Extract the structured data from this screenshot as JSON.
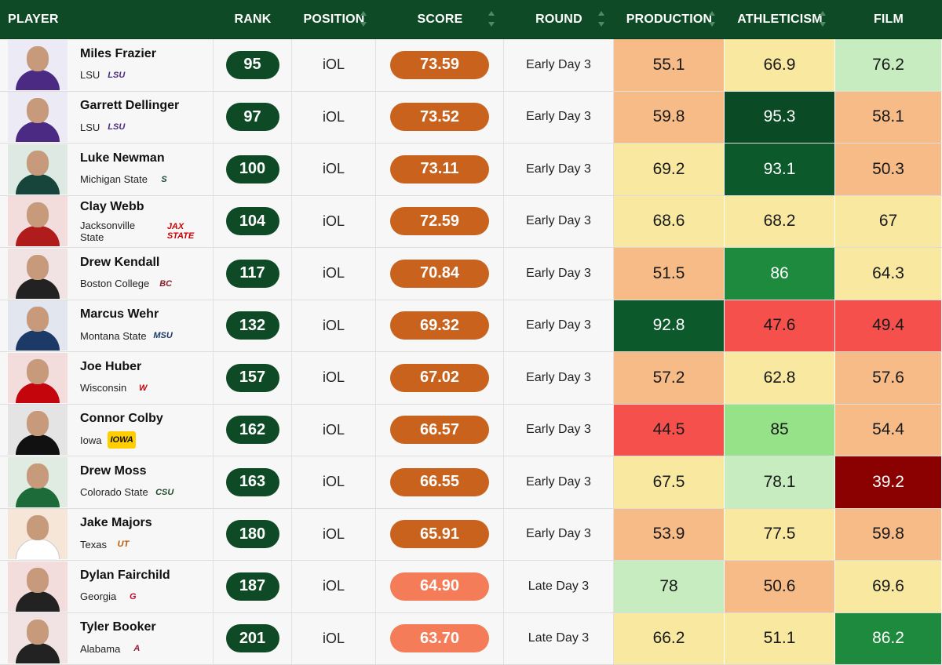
{
  "headers": {
    "player": "PLAYER",
    "rank": "RANK",
    "position": "POSITION",
    "score": "SCORE",
    "round": "ROUND",
    "production": "PRODUCTION",
    "athleticism": "ATHLETICISM",
    "film": "FILM"
  },
  "colors": {
    "header_bg": "#0f4a26",
    "rank_pill": "#0f4a26",
    "score_pill_early": "#c8621c",
    "score_pill_late": "#f47c59"
  },
  "players": [
    {
      "name": "Miles Frazier",
      "school": "LSU",
      "logo": "LSU",
      "logo_color": "#4b2a84",
      "logo_bg": "",
      "avatar_bg": "#ecebf5",
      "jersey": "#4b2a84",
      "rank": "95",
      "position": "iOL",
      "score": "73.59",
      "score_color": "#c8621c",
      "round": "Early Day 3",
      "production": "55.1",
      "production_color": "#f6bb86",
      "athleticism": "66.9",
      "athleticism_color": "#f8e8a0",
      "film": "76.2",
      "film_color": "#c6ecc0"
    },
    {
      "name": "Garrett Dellinger",
      "school": "LSU",
      "logo": "LSU",
      "logo_color": "#4b2a84",
      "logo_bg": "",
      "avatar_bg": "#ecebf5",
      "jersey": "#4b2a84",
      "rank": "97",
      "position": "iOL",
      "score": "73.52",
      "score_color": "#c8621c",
      "round": "Early Day 3",
      "production": "59.8",
      "production_color": "#f6bb86",
      "athleticism": "95.3",
      "athleticism_color": "#0a4a24",
      "film": "58.1",
      "film_color": "#f6bb86"
    },
    {
      "name": "Luke Newman",
      "school": "Michigan State",
      "logo": "S",
      "logo_color": "#18453b",
      "logo_bg": "",
      "avatar_bg": "#dfe9e4",
      "jersey": "#18453b",
      "rank": "100",
      "position": "iOL",
      "score": "73.11",
      "score_color": "#c8621c",
      "round": "Early Day 3",
      "production": "69.2",
      "production_color": "#f8e8a0",
      "athleticism": "93.1",
      "athleticism_color": "#0c5a2c",
      "film": "50.3",
      "film_color": "#f6bb86"
    },
    {
      "name": "Clay Webb",
      "school": "Jacksonville State",
      "logo": "JAX STATE",
      "logo_color": "#cc0000",
      "logo_bg": "",
      "avatar_bg": "#f3dcdc",
      "jersey": "#b01c1c",
      "rank": "104",
      "position": "iOL",
      "score": "72.59",
      "score_color": "#c8621c",
      "round": "Early Day 3",
      "production": "68.6",
      "production_color": "#f8e8a0",
      "athleticism": "68.2",
      "athleticism_color": "#f8e8a0",
      "film": "67",
      "film_color": "#f8e8a0"
    },
    {
      "name": "Drew Kendall",
      "school": "Boston College",
      "logo": "BC",
      "logo_color": "#8a1c2b",
      "logo_bg": "",
      "avatar_bg": "#f1e2e4",
      "jersey": "#222222",
      "rank": "117",
      "position": "iOL",
      "score": "70.84",
      "score_color": "#c8621c",
      "round": "Early Day 3",
      "production": "51.5",
      "production_color": "#f6bb86",
      "athleticism": "86",
      "athleticism_color": "#1e8a3e",
      "film": "64.3",
      "film_color": "#f8e8a0"
    },
    {
      "name": "Marcus Wehr",
      "school": "Montana State",
      "logo": "MSU",
      "logo_color": "#1b3a67",
      "logo_bg": "",
      "avatar_bg": "#e2e6ee",
      "jersey": "#1b3a67",
      "rank": "132",
      "position": "iOL",
      "score": "69.32",
      "score_color": "#c8621c",
      "round": "Early Day 3",
      "production": "92.8",
      "production_color": "#0c5a2c",
      "athleticism": "47.6",
      "athleticism_color": "#f6504c",
      "film": "49.4",
      "film_color": "#f6504c"
    },
    {
      "name": "Joe Huber",
      "school": "Wisconsin",
      "logo": "W",
      "logo_color": "#c5050c",
      "logo_bg": "",
      "avatar_bg": "#f3dcdc",
      "jersey": "#c5050c",
      "rank": "157",
      "position": "iOL",
      "score": "67.02",
      "score_color": "#c8621c",
      "round": "Early Day 3",
      "production": "57.2",
      "production_color": "#f6bb86",
      "athleticism": "62.8",
      "athleticism_color": "#f8e8a0",
      "film": "57.6",
      "film_color": "#f6bb86"
    },
    {
      "name": "Connor Colby",
      "school": "Iowa",
      "logo": "IOWA",
      "logo_color": "#111111",
      "logo_bg": "#ffcd00",
      "avatar_bg": "#e4e4e4",
      "jersey": "#111111",
      "rank": "162",
      "position": "iOL",
      "score": "66.57",
      "score_color": "#c8621c",
      "round": "Early Day 3",
      "production": "44.5",
      "production_color": "#f6504c",
      "athleticism": "85",
      "athleticism_color": "#96e288",
      "film": "54.4",
      "film_color": "#f6bb86"
    },
    {
      "name": "Drew Moss",
      "school": "Colorado State",
      "logo": "CSU",
      "logo_color": "#1e4d2b",
      "logo_bg": "",
      "avatar_bg": "#e0ece2",
      "jersey": "#1e6b3a",
      "rank": "163",
      "position": "iOL",
      "score": "66.55",
      "score_color": "#c8621c",
      "round": "Early Day 3",
      "production": "67.5",
      "production_color": "#f8e8a0",
      "athleticism": "78.1",
      "athleticism_color": "#c6ecc0",
      "film": "39.2",
      "film_color": "#8b0000"
    },
    {
      "name": "Jake Majors",
      "school": "Texas",
      "logo": "UT",
      "logo_color": "#bf5700",
      "logo_bg": "",
      "avatar_bg": "#f6e6d8",
      "jersey": "#ffffff",
      "rank": "180",
      "position": "iOL",
      "score": "65.91",
      "score_color": "#c8621c",
      "round": "Early Day 3",
      "production": "53.9",
      "production_color": "#f6bb86",
      "athleticism": "77.5",
      "athleticism_color": "#f8e8a0",
      "film": "59.8",
      "film_color": "#f6bb86"
    },
    {
      "name": "Dylan Fairchild",
      "school": "Georgia",
      "logo": "G",
      "logo_color": "#ba0c2f",
      "logo_bg": "",
      "avatar_bg": "#f3dcdc",
      "jersey": "#222222",
      "rank": "187",
      "position": "iOL",
      "score": "64.90",
      "score_color": "#f47c59",
      "round": "Late Day 3",
      "production": "78",
      "production_color": "#c6ecc0",
      "athleticism": "50.6",
      "athleticism_color": "#f6bb86",
      "film": "69.6",
      "film_color": "#f8e8a0"
    },
    {
      "name": "Tyler Booker",
      "school": "Alabama",
      "logo": "A",
      "logo_color": "#9e1b32",
      "logo_bg": "",
      "avatar_bg": "#f1e2e4",
      "jersey": "#222222",
      "rank": "201",
      "position": "iOL",
      "score": "63.70",
      "score_color": "#f47c59",
      "round": "Late Day 3",
      "production": "66.2",
      "production_color": "#f8e8a0",
      "athleticism": "51.1",
      "athleticism_color": "#f8e8a0",
      "film": "86.2",
      "film_color": "#1e8a3e"
    }
  ]
}
